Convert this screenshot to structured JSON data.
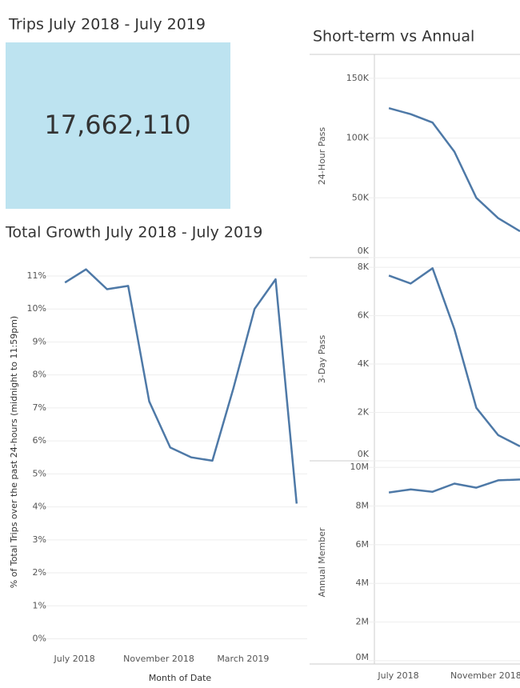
{
  "kpi": {
    "title": "Trips July 2018 - July 2019",
    "value": "17,662,110"
  },
  "chart_data": [
    {
      "type": "line",
      "title": "Total Growth July 2018 - July 2019",
      "x_label": "Month of Date",
      "y_label": "% of Total Trips over the past 24-hours (midnight to 11:59pm)",
      "categories": [
        "July 2018",
        null,
        null,
        null,
        "November 2018",
        null,
        null,
        null,
        "March 2019",
        null,
        null,
        null
      ],
      "color": "#4e79a7",
      "values": [
        10.8,
        11.2,
        10.6,
        10.7,
        7.2,
        5.8,
        5.5,
        5.4,
        7.6,
        10.0,
        10.9,
        4.1
      ],
      "ylim": [
        -0.4,
        11.8
      ],
      "yticks": [
        {
          "value": 0,
          "label": "0%"
        },
        {
          "value": 1,
          "label": "1%"
        },
        {
          "value": 2,
          "label": "2%"
        },
        {
          "value": 3,
          "label": "3%"
        },
        {
          "value": 4,
          "label": "4%"
        },
        {
          "value": 5,
          "label": "5%"
        },
        {
          "value": 6,
          "label": "6%"
        },
        {
          "value": 7,
          "label": "7%"
        },
        {
          "value": 8,
          "label": "8%"
        },
        {
          "value": 9,
          "label": "9%"
        },
        {
          "value": 10,
          "label": "10%"
        },
        {
          "value": 11,
          "label": "11%"
        }
      ],
      "grid": true
    },
    {
      "type": "line",
      "title": "Short-term vs Annual",
      "categories": [
        "July 2018",
        null,
        null,
        null,
        "November 2018",
        null,
        null
      ],
      "panes": [
        {
          "y_label": "24-Hour Pass",
          "color": "#4e79a7",
          "values": [
            125000,
            120000,
            113000,
            88600,
            50000,
            33000,
            22000
          ],
          "ylim": [
            0,
            170000
          ],
          "yticks": [
            {
              "value": 0,
              "label": "0K"
            },
            {
              "value": 50000,
              "label": "50K"
            },
            {
              "value": 100000,
              "label": "100K"
            },
            {
              "value": 150000,
              "label": "150K"
            }
          ]
        },
        {
          "y_label": "3-Day Pass",
          "color": "#4e79a7",
          "values": [
            7660,
            7330,
            7960,
            5440,
            2190,
            1060,
            600
          ],
          "ylim": [
            0,
            8400
          ],
          "yticks": [
            {
              "value": 0,
              "label": "0K"
            },
            {
              "value": 2000,
              "label": "2K"
            },
            {
              "value": 4000,
              "label": "4K"
            },
            {
              "value": 6000,
              "label": "6K"
            },
            {
              "value": 8000,
              "label": "8K"
            }
          ]
        },
        {
          "y_label": "Annual Member",
          "color": "#4e79a7",
          "values": [
            8700000,
            8860000,
            8740000,
            9160000,
            8950000,
            9330000,
            9370000
          ],
          "ylim": [
            -170000,
            10340000
          ],
          "yticks": [
            {
              "value": 0,
              "label": "0M"
            },
            {
              "value": 2000000,
              "label": "2M"
            },
            {
              "value": 4000000,
              "label": "4M"
            },
            {
              "value": 6000000,
              "label": "6M"
            },
            {
              "value": 8000000,
              "label": "8M"
            },
            {
              "value": 10000000,
              "label": "10M"
            }
          ]
        }
      ],
      "grid": true
    }
  ]
}
